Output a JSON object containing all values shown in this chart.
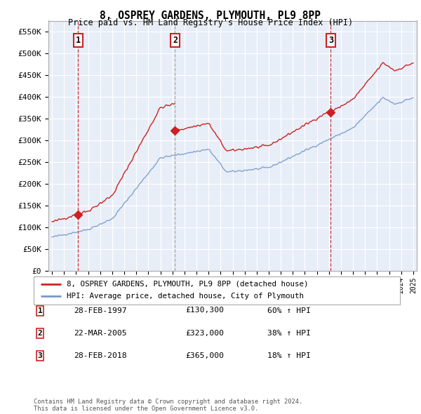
{
  "title": "8, OSPREY GARDENS, PLYMOUTH, PL9 8PP",
  "subtitle": "Price paid vs. HM Land Registry's House Price Index (HPI)",
  "ylim": [
    0,
    575000
  ],
  "yticks": [
    0,
    50000,
    100000,
    150000,
    200000,
    250000,
    300000,
    350000,
    400000,
    450000,
    500000,
    550000
  ],
  "ytick_labels": [
    "£0",
    "£50K",
    "£100K",
    "£150K",
    "£200K",
    "£250K",
    "£300K",
    "£350K",
    "£400K",
    "£450K",
    "£500K",
    "£550K"
  ],
  "hpi_color": "#7799cc",
  "price_color": "#cc2222",
  "chart_bg": "#e8eef8",
  "fig_bg": "#ffffff",
  "grid_color": "#ffffff",
  "sale_years": [
    1997.15,
    2005.22,
    2018.15
  ],
  "sale_prices": [
    130300,
    323000,
    365000
  ],
  "sale_labels": [
    "1",
    "2",
    "3"
  ],
  "vline1_color": "#cc2222",
  "vline2_color": "#888888",
  "vline3_color": "#cc2222",
  "legend_label_price": "8, OSPREY GARDENS, PLYMOUTH, PL9 8PP (detached house)",
  "legend_label_hpi": "HPI: Average price, detached house, City of Plymouth",
  "table_rows": [
    {
      "num": "1",
      "date": "28-FEB-1997",
      "price": "£130,300",
      "hpi": "60% ↑ HPI"
    },
    {
      "num": "2",
      "date": "22-MAR-2005",
      "price": "£323,000",
      "hpi": "38% ↑ HPI"
    },
    {
      "num": "3",
      "date": "28-FEB-2018",
      "price": "£365,000",
      "hpi": "18% ↑ HPI"
    }
  ],
  "footer": "Contains HM Land Registry data © Crown copyright and database right 2024.\nThis data is licensed under the Open Government Licence v3.0."
}
